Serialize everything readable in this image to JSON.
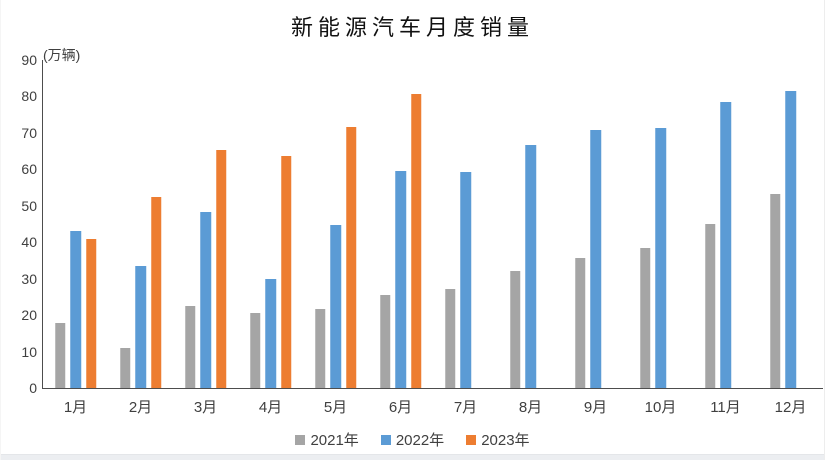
{
  "chart_data": {
    "type": "bar",
    "title": "新能源汽车月度销量",
    "unit_label": "(万辆)",
    "categories": [
      "1月",
      "2月",
      "3月",
      "4月",
      "5月",
      "6月",
      "7月",
      "8月",
      "9月",
      "10月",
      "11月",
      "12月"
    ],
    "series": [
      {
        "name": "2021年",
        "color": "#a5a5a5",
        "values": [
          17.9,
          11.0,
          22.6,
          20.6,
          21.7,
          25.6,
          27.1,
          32.1,
          35.7,
          38.3,
          45.0,
          53.1
        ]
      },
      {
        "name": "2022年",
        "color": "#5b9bd5",
        "values": [
          43.1,
          33.4,
          48.4,
          29.9,
          44.7,
          59.6,
          59.3,
          66.6,
          70.8,
          71.4,
          78.6,
          81.4
        ]
      },
      {
        "name": "2023年",
        "color": "#ed7d31",
        "values": [
          40.8,
          52.5,
          65.3,
          63.6,
          71.7,
          80.6,
          null,
          null,
          null,
          null,
          null,
          null
        ]
      }
    ],
    "y_axis": {
      "min": 0,
      "max": 90,
      "tick_step": 10,
      "ticks": [
        0,
        10,
        20,
        30,
        40,
        50,
        60,
        70,
        80,
        90
      ]
    },
    "xlabel": "",
    "ylabel": "(万辆)",
    "grid": false,
    "legend_position": "bottom"
  },
  "colors": {
    "axis_line": "#4d4d4d",
    "tick_label": "#404040",
    "title_text": "#111111",
    "bottom_strip": "#eceef1"
  }
}
